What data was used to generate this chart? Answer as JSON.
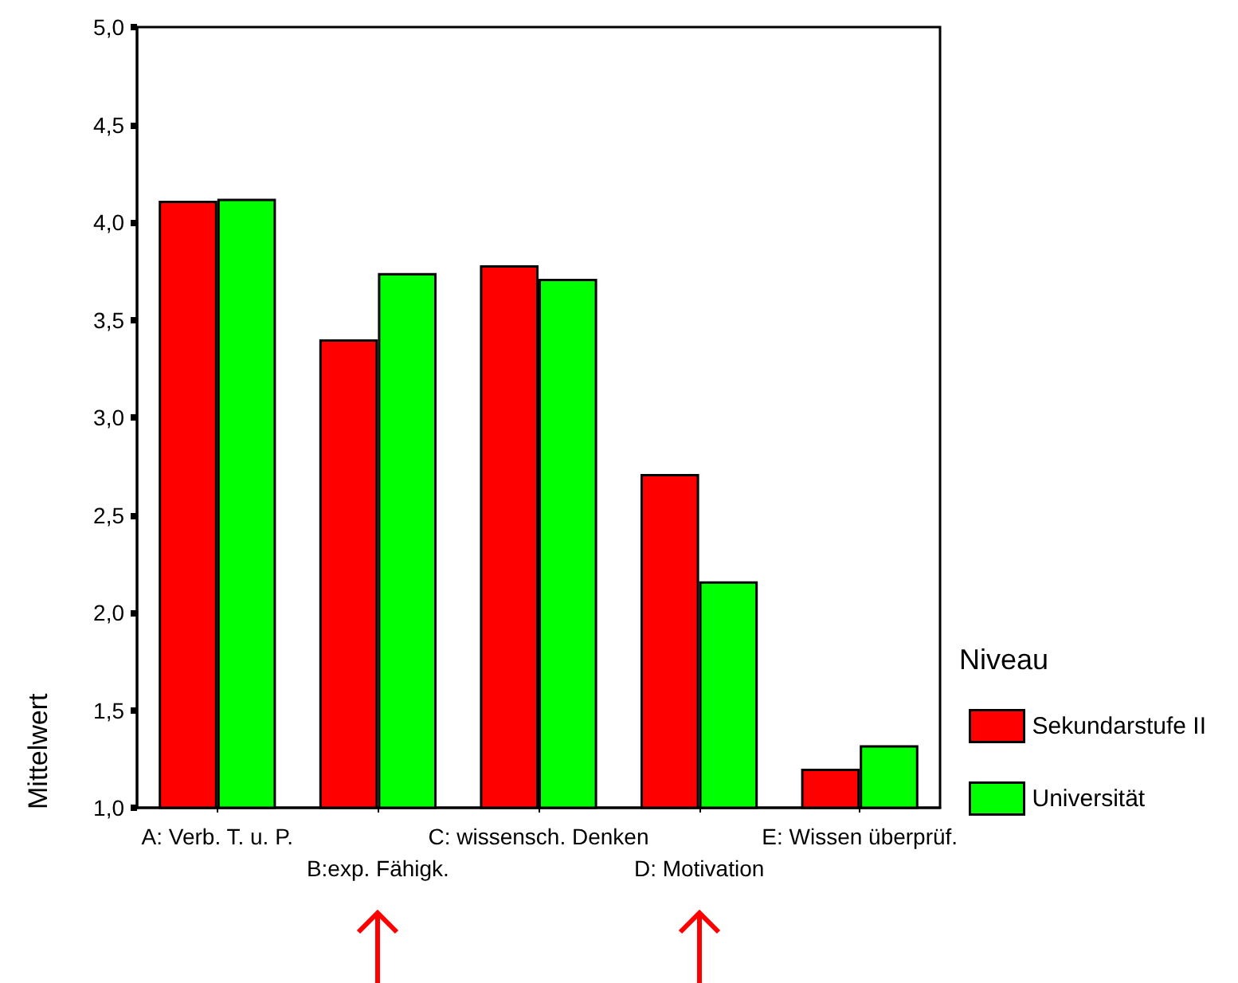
{
  "chart_data": {
    "type": "bar",
    "ylabel": "Mittelwert",
    "legend_title": "Niveau",
    "legend": "right",
    "grid": false,
    "categories": [
      "A: Verb. T. u. P.",
      "B:exp. Fähigk.",
      "C: wissensch. Denken",
      "D: Motivation",
      "E: Wissen überprüf."
    ],
    "series": [
      {
        "name": "Sekundarstufe II",
        "color": "#ff0000",
        "values": [
          4.11,
          3.4,
          3.78,
          2.71,
          1.2
        ]
      },
      {
        "name": "Universität",
        "color": "#00ff00",
        "values": [
          4.12,
          3.74,
          3.71,
          2.16,
          1.32
        ]
      }
    ],
    "ylim": [
      1,
      5
    ],
    "yticks": [
      {
        "value": 1,
        "label": "1,0"
      },
      {
        "value": 1.5,
        "label": "1,5"
      },
      {
        "value": 2,
        "label": "2,0"
      },
      {
        "value": 2.5,
        "label": "2,5"
      },
      {
        "value": 3,
        "label": "3,0"
      },
      {
        "value": 3.5,
        "label": "3,5"
      },
      {
        "value": 4,
        "label": "4,0"
      },
      {
        "value": 4.5,
        "label": "4,5"
      },
      {
        "value": 5,
        "label": "5,0"
      }
    ]
  }
}
